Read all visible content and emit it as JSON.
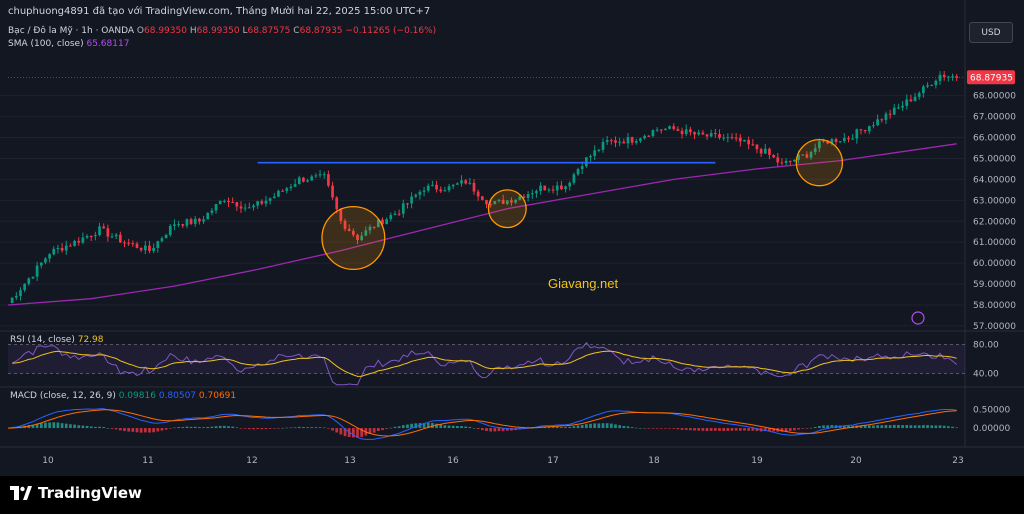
{
  "header": {
    "attribution": "chuphuong4891 đã tạo với TradingView.com, Tháng Mười hai 22, 2025 15:00 UTC+7",
    "symbol": "Bạc / Đô la Mỹ · 1h · OANDA",
    "o_label": "O",
    "o_value": "68.99350",
    "h_label": "H",
    "h_value": "68.99350",
    "l_label": "L",
    "l_value": "68.87575",
    "c_label": "C",
    "c_value": "68.87935",
    "change": "−0.11265 (−0.16%)",
    "sma_label": "SMA (100, close)",
    "sma_value": "65.68117",
    "currency": "USD"
  },
  "rsi_panel": {
    "label": "RSI (14, close)",
    "value": "72.98",
    "ticks": [
      "80.00",
      "40.00"
    ]
  },
  "macd_panel": {
    "label": "MACD (close, 12, 26, 9)",
    "macd_value": "0.09816",
    "signal_value": "0.80507",
    "hist_value": "0.70691",
    "ticks": [
      "0.50000",
      "0.00000"
    ]
  },
  "watermark": "Giavang.net",
  "brand": "TradingView",
  "colors": {
    "background": "#131722",
    "up": "#089981",
    "down": "#f23645",
    "sma": "#9c27b0",
    "resistance": "#2962ff",
    "highlight": "#ff9800",
    "rsi": "#7e57c2",
    "macd": "#2962ff",
    "signal": "#ff6d00"
  },
  "chart_data": {
    "type": "candlestick",
    "price_axis": {
      "ticks": [
        "68.00000",
        "67.00000",
        "66.00000",
        "65.00000",
        "64.00000",
        "63.00000",
        "62.00000",
        "61.00000",
        "60.00000",
        "59.00000",
        "58.00000",
        "57.00000"
      ],
      "last_price": "68.87935",
      "ylim": [
        56.9,
        69.8
      ]
    },
    "x_axis": {
      "ticks": [
        "10",
        "11",
        "12",
        "13",
        "16",
        "17",
        "18",
        "19",
        "20",
        "23"
      ]
    },
    "close_path": [
      {
        "x": 0,
        "y": 58.1
      },
      {
        "x": 6,
        "y": 59.5
      },
      {
        "x": 10,
        "y": 60.5
      },
      {
        "x": 16,
        "y": 61.0
      },
      {
        "x": 22,
        "y": 61.6
      },
      {
        "x": 28,
        "y": 61.0
      },
      {
        "x": 34,
        "y": 60.6
      },
      {
        "x": 40,
        "y": 61.9
      },
      {
        "x": 46,
        "y": 62.0
      },
      {
        "x": 52,
        "y": 63.1
      },
      {
        "x": 58,
        "y": 62.6
      },
      {
        "x": 64,
        "y": 63.2
      },
      {
        "x": 70,
        "y": 64.0
      },
      {
        "x": 76,
        "y": 64.1
      },
      {
        "x": 80,
        "y": 62.0
      },
      {
        "x": 84,
        "y": 61.2
      },
      {
        "x": 88,
        "y": 61.8
      },
      {
        "x": 94,
        "y": 62.5
      },
      {
        "x": 100,
        "y": 63.6
      },
      {
        "x": 106,
        "y": 63.6
      },
      {
        "x": 110,
        "y": 63.9
      },
      {
        "x": 116,
        "y": 62.8
      },
      {
        "x": 122,
        "y": 63.1
      },
      {
        "x": 128,
        "y": 63.6
      },
      {
        "x": 134,
        "y": 63.7
      },
      {
        "x": 138,
        "y": 64.8
      },
      {
        "x": 144,
        "y": 65.8
      },
      {
        "x": 150,
        "y": 65.9
      },
      {
        "x": 156,
        "y": 66.4
      },
      {
        "x": 160,
        "y": 66.4
      },
      {
        "x": 166,
        "y": 66.1
      },
      {
        "x": 172,
        "y": 66.0
      },
      {
        "x": 176,
        "y": 65.8
      },
      {
        "x": 182,
        "y": 65.3
      },
      {
        "x": 186,
        "y": 64.7
      },
      {
        "x": 192,
        "y": 65.2
      },
      {
        "x": 196,
        "y": 65.8
      },
      {
        "x": 202,
        "y": 66.0
      },
      {
        "x": 208,
        "y": 66.7
      },
      {
        "x": 214,
        "y": 67.4
      },
      {
        "x": 220,
        "y": 68.3
      },
      {
        "x": 224,
        "y": 69.0
      },
      {
        "x": 228,
        "y": 68.9
      }
    ],
    "sma_path": [
      {
        "x": 0,
        "y": 58.0
      },
      {
        "x": 20,
        "y": 58.3
      },
      {
        "x": 40,
        "y": 58.9
      },
      {
        "x": 60,
        "y": 59.7
      },
      {
        "x": 80,
        "y": 60.6
      },
      {
        "x": 100,
        "y": 61.6
      },
      {
        "x": 120,
        "y": 62.6
      },
      {
        "x": 140,
        "y": 63.3
      },
      {
        "x": 160,
        "y": 64.0
      },
      {
        "x": 180,
        "y": 64.5
      },
      {
        "x": 200,
        "y": 64.9
      },
      {
        "x": 228,
        "y": 65.7
      }
    ],
    "resistance": {
      "x1": 60,
      "x2": 170,
      "y": 64.8
    },
    "highlights": [
      {
        "x": 83,
        "y": 61.2,
        "r": 1.5
      },
      {
        "x": 120,
        "y": 62.6,
        "r": 0.9
      },
      {
        "x": 195,
        "y": 64.8,
        "r": 1.1
      }
    ],
    "rsi": {
      "ylim": [
        30,
        90
      ],
      "current": 72.98
    },
    "macd": {
      "ylim": [
        -0.35,
        0.95
      ],
      "macd_current": 0.09816,
      "signal_current": 0.80507,
      "hist_current": 0.70691
    }
  }
}
